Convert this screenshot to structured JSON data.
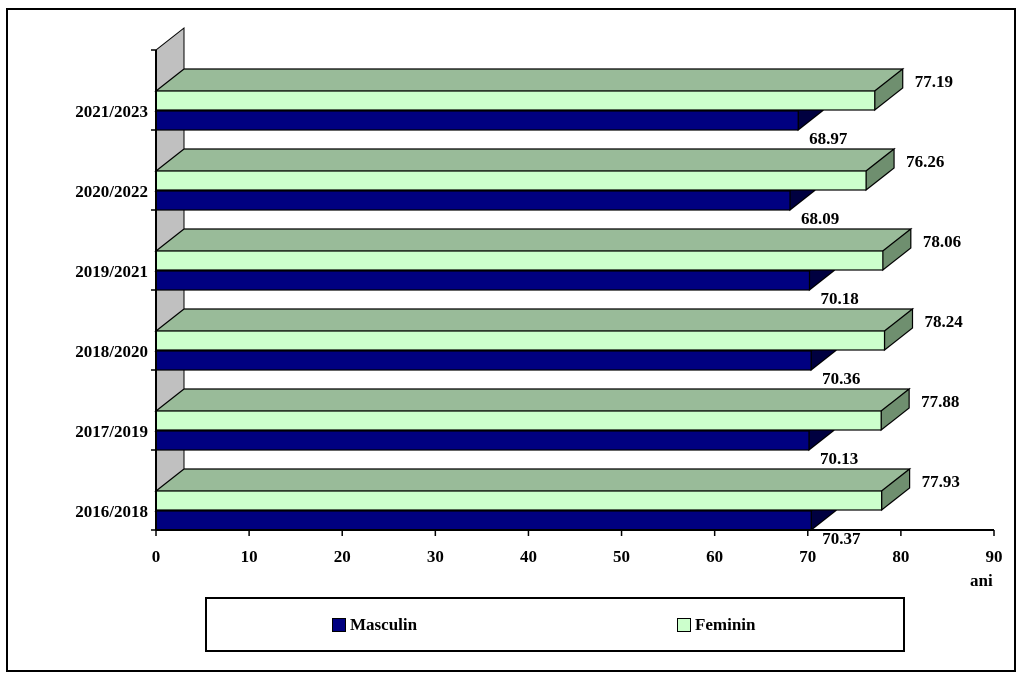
{
  "chart_data": {
    "type": "bar",
    "orientation": "horizontal",
    "three_d": true,
    "categories": [
      "2016/2018",
      "2017/2019",
      "2018/2020",
      "2019/2021",
      "2020/2022",
      "2021/2023"
    ],
    "series": [
      {
        "name": "Masculin",
        "values": [
          70.37,
          70.13,
          70.36,
          70.18,
          68.09,
          68.97
        ],
        "color": "#000080"
      },
      {
        "name": "Feminin",
        "values": [
          77.93,
          77.88,
          78.24,
          78.06,
          76.26,
          77.19
        ],
        "color": "#ccffcc"
      }
    ],
    "value_labels": {
      "Masculin": [
        "70.37",
        "70.13",
        "70.36",
        "70.18",
        "68.09",
        "68.97"
      ],
      "Feminin": [
        "77.93",
        "77.88",
        "78.24",
        "78.06",
        "76.26",
        "77.19"
      ]
    },
    "x_ticks": [
      "0",
      "10",
      "20",
      "30",
      "40",
      "50",
      "60",
      "70",
      "80",
      "90"
    ],
    "xlim": [
      0,
      90
    ],
    "xlabel": "ani",
    "ylabel": "",
    "grid": false,
    "legend_position": "bottom",
    "colors": {
      "masculin_side": "#000040",
      "feminin_top": "#99bb99",
      "feminin_side": "#6f8f6f",
      "wall": "#c0c0c0"
    }
  }
}
